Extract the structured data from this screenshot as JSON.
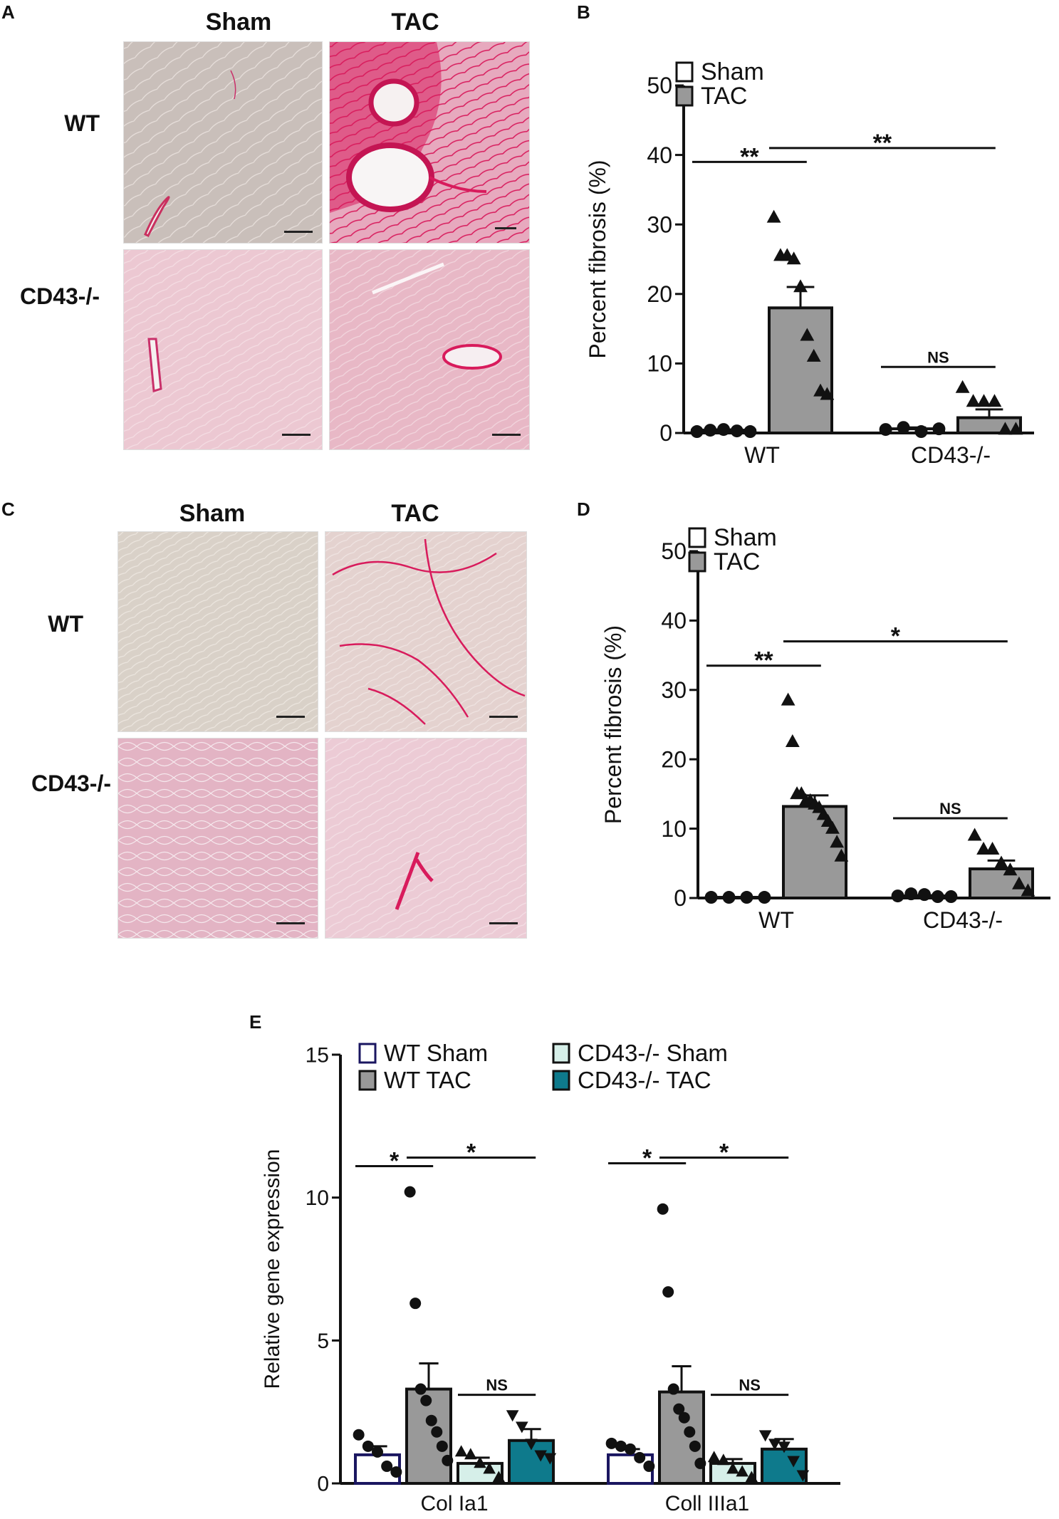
{
  "panels": {
    "A": {
      "letter": "A",
      "col_headers": [
        "Sham",
        "TAC"
      ],
      "row_labels": [
        "WT",
        "CD43-/-"
      ]
    },
    "C": {
      "letter": "C",
      "col_headers": [
        "Sham",
        "TAC"
      ],
      "row_labels": [
        "WT",
        "CD43-/-"
      ]
    },
    "B": {
      "letter": "B"
    },
    "D": {
      "letter": "D"
    },
    "E": {
      "letter": "E"
    }
  },
  "colors": {
    "sham_fill": "#ffffff",
    "tac_fill": "#999999",
    "ko_sham_fill": "#d6efe9",
    "ko_tac_fill": "#0e7a8c",
    "wt_sham_edge": "#1a1660",
    "stain_pink": "#d81b5c"
  },
  "chart_data": [
    {
      "id": "B",
      "type": "bar",
      "ylabel": "Percent fibrosis (%)",
      "ylim": [
        0,
        50
      ],
      "yticks": [
        0,
        10,
        20,
        30,
        40,
        50
      ],
      "categories": [
        "WT",
        "CD43-/-"
      ],
      "legend": {
        "placement": "top-left",
        "entries": [
          "Sham",
          "TAC"
        ]
      },
      "series": [
        {
          "name": "Sham",
          "values": [
            0.4,
            0.6
          ],
          "errors": [
            0.1,
            0.2
          ],
          "points": [
            [
              0.2,
              0.4,
              0.5,
              0.3,
              0.2
            ],
            [
              0.5,
              0.8,
              0.2,
              0.6
            ]
          ],
          "marker": "circle"
        },
        {
          "name": "TAC",
          "values": [
            18.0,
            2.2
          ],
          "errors": [
            3.0,
            1.2
          ],
          "points": [
            [
              31,
              25.5,
              25.5,
              25,
              21,
              14,
              11,
              6,
              5.5
            ],
            [
              6.5,
              4.5,
              4.5,
              4.5,
              0.5,
              0.5
            ]
          ],
          "marker": "triangle"
        }
      ],
      "annotations": [
        {
          "text": "**",
          "from": [
            0,
            0
          ],
          "to": [
            0,
            1
          ],
          "y": 39
        },
        {
          "text": "**",
          "from": [
            0,
            1
          ],
          "to": [
            1,
            1
          ],
          "y": 41
        },
        {
          "text": "NS",
          "from": [
            1,
            0
          ],
          "to": [
            1,
            1
          ],
          "y": 9.5
        }
      ]
    },
    {
      "id": "D",
      "type": "bar",
      "ylabel": "Percent fibrosis (%)",
      "ylim": [
        0,
        50
      ],
      "yticks": [
        0,
        10,
        20,
        30,
        40,
        50
      ],
      "categories": [
        "WT",
        "CD43-/-"
      ],
      "legend": {
        "placement": "top-left",
        "entries": [
          "Sham",
          "TAC"
        ]
      },
      "series": [
        {
          "name": "Sham",
          "values": [
            0.1,
            0.3
          ],
          "errors": [
            0.05,
            0.1
          ],
          "points": [
            [
              0.1,
              0.1,
              0.1,
              0.1
            ],
            [
              0.3,
              0.6,
              0.5,
              0.2,
              0.2
            ]
          ],
          "marker": "circle"
        },
        {
          "name": "TAC",
          "values": [
            13.2,
            4.2
          ],
          "errors": [
            1.6,
            1.2
          ],
          "points": [
            [
              28.5,
              22.5,
              15,
              15,
              14,
              14,
              13.5,
              13,
              12,
              11,
              10,
              8,
              6
            ],
            [
              9,
              7,
              7,
              5,
              4,
              2,
              1
            ]
          ],
          "marker": "triangle"
        }
      ],
      "annotations": [
        {
          "text": "**",
          "from": [
            0,
            0
          ],
          "to": [
            0,
            1
          ],
          "y": 33.5
        },
        {
          "text": "*",
          "from": [
            0,
            1
          ],
          "to": [
            1,
            1
          ],
          "y": 37
        },
        {
          "text": "NS",
          "from": [
            1,
            0
          ],
          "to": [
            1,
            1
          ],
          "y": 11.5
        }
      ]
    },
    {
      "id": "E",
      "type": "bar",
      "ylabel": "Relative  gene expression",
      "ylim": [
        0,
        15
      ],
      "yticks": [
        0,
        5,
        10,
        15
      ],
      "categories": [
        "Col Ia1",
        "Coll IIIa1"
      ],
      "legend": {
        "placement": "top-left",
        "entries": [
          "WT Sham",
          "WT TAC",
          "CD43-/- Sham",
          "CD43-/-  TAC"
        ]
      },
      "series": [
        {
          "name": "WT Sham",
          "values": [
            1.0,
            1.0
          ],
          "errors": [
            0.3,
            0.2
          ],
          "points": [
            [
              1.7,
              1.3,
              1.1,
              0.6,
              0.4
            ],
            [
              1.4,
              1.3,
              1.2,
              0.9,
              0.6
            ]
          ],
          "marker": "circle"
        },
        {
          "name": "WT TAC",
          "values": [
            3.3,
            3.2
          ],
          "errors": [
            0.9,
            0.9
          ],
          "points": [
            [
              10.2,
              6.3,
              3.3,
              2.9,
              2.2,
              1.8,
              1.3,
              0.8
            ],
            [
              9.6,
              6.7,
              3.3,
              2.6,
              2.3,
              1.8,
              1.3,
              0.7
            ]
          ],
          "marker": "circle"
        },
        {
          "name": "CD43-/- Sham",
          "values": [
            0.7,
            0.7
          ],
          "errors": [
            0.2,
            0.15
          ],
          "points": [
            [
              1.1,
              1.0,
              0.7,
              0.5,
              0.2
            ],
            [
              0.9,
              0.8,
              0.5,
              0.4,
              0.2
            ]
          ],
          "marker": "triangle"
        },
        {
          "name": "CD43-/-  TAC",
          "values": [
            1.5,
            1.2
          ],
          "errors": [
            0.4,
            0.35
          ],
          "points": [
            [
              2.4,
              2.0,
              1.4,
              1.0,
              0.9
            ],
            [
              1.7,
              1.4,
              1.3,
              0.8,
              0.3
            ]
          ],
          "marker": "triangle-down"
        }
      ],
      "annotations": [
        {
          "text": "*",
          "from": [
            0,
            0
          ],
          "to": [
            0,
            1
          ],
          "y": 11.1
        },
        {
          "text": "*",
          "from": [
            0,
            1
          ],
          "to": [
            0,
            3
          ],
          "y": 11.4
        },
        {
          "text": "NS",
          "from": [
            0,
            2
          ],
          "to": [
            0,
            3
          ],
          "y": 3.1
        },
        {
          "text": "*",
          "from": [
            1,
            0
          ],
          "to": [
            1,
            1
          ],
          "y": 11.2
        },
        {
          "text": "*",
          "from": [
            1,
            1
          ],
          "to": [
            1,
            3
          ],
          "y": 11.4
        },
        {
          "text": "NS",
          "from": [
            1,
            2
          ],
          "to": [
            1,
            3
          ],
          "y": 3.1
        }
      ]
    }
  ]
}
